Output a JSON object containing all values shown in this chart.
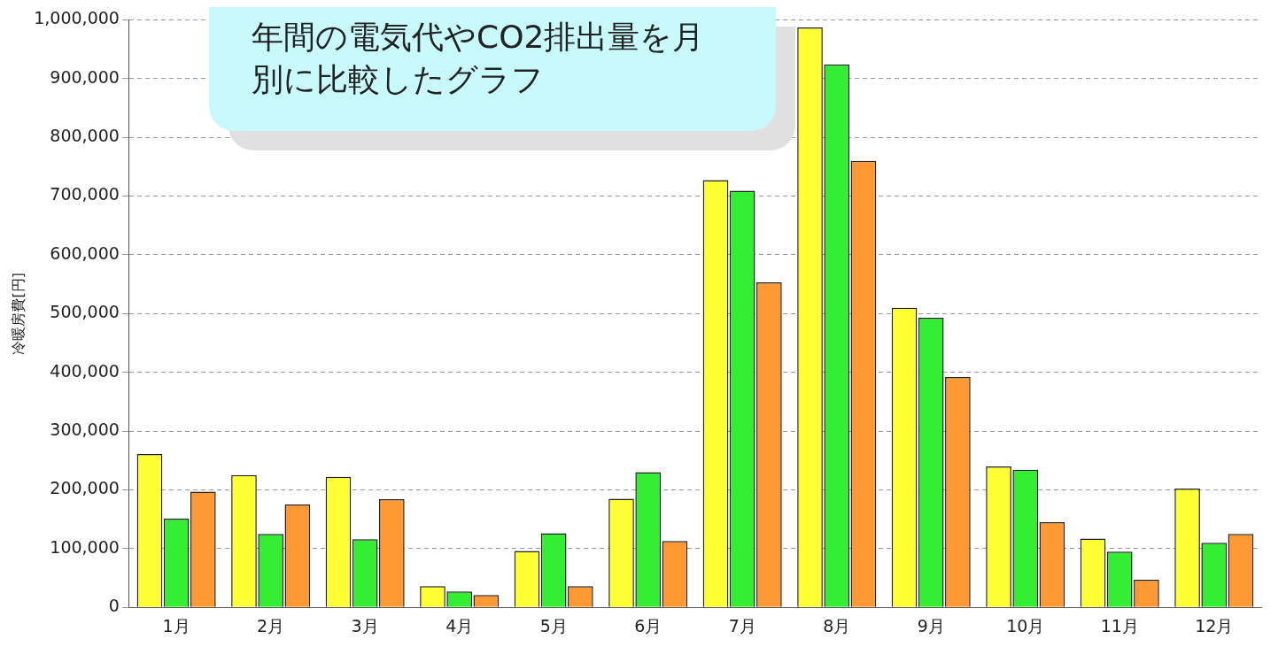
{
  "chart_data": {
    "type": "bar",
    "title": "年間の電気代やCO2排出量を月別に比較したグラフ",
    "ylabel": "冷暖房費[円]",
    "categories": [
      "1月",
      "2月",
      "3月",
      "4月",
      "5月",
      "6月",
      "7月",
      "8月",
      "9月",
      "10月",
      "11月",
      "12月"
    ],
    "series": [
      {
        "color": "#ffff33",
        "values": [
          261000,
          225000,
          222000,
          36000,
          96000,
          185000,
          727000,
          987000,
          510000,
          240000,
          117000,
          202000
        ]
      },
      {
        "color": "#33ee33",
        "values": [
          151000,
          125000,
          116000,
          27000,
          126000,
          230000,
          709000,
          924000,
          493000,
          234000,
          95000,
          110000
        ]
      },
      {
        "color": "#ff9933",
        "values": [
          197000,
          175000,
          184000,
          21000,
          36000,
          113000,
          553000,
          760000,
          392000,
          145000,
          47000,
          125000
        ]
      }
    ],
    "ylim": [
      0,
      1000000
    ],
    "yticks": [
      0,
      {
        "value": 100000,
        "label": "100,000"
      },
      {
        "value": 200000,
        "label": "200,000"
      },
      {
        "value": 300000,
        "label": "300,000"
      },
      {
        "value": 400000,
        "label": "400,000"
      },
      {
        "value": 500000,
        "label": "500,000"
      },
      {
        "value": 600000,
        "label": "600,000"
      },
      {
        "value": 700000,
        "label": "700,000"
      },
      {
        "value": 800000,
        "label": "800,000"
      },
      {
        "value": 900000,
        "label": "900,000"
      },
      {
        "value": 1000000,
        "label": "1,000,000"
      }
    ],
    "grid": "y",
    "legend": false
  }
}
